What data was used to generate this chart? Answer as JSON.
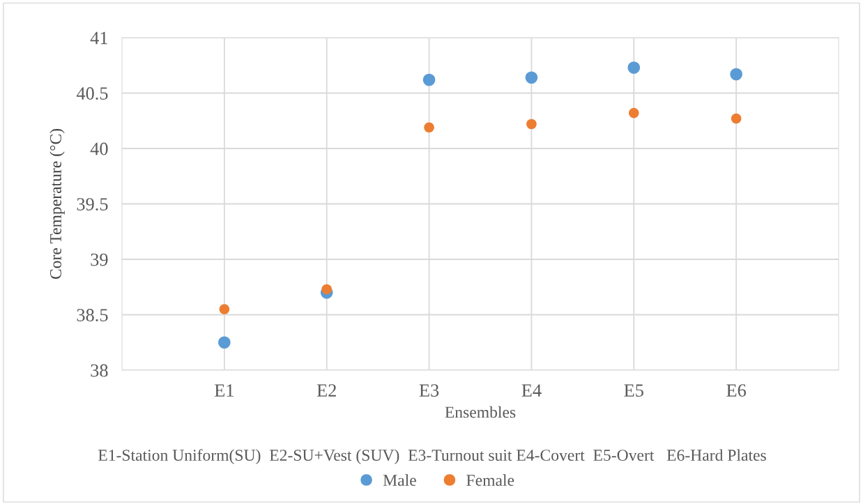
{
  "chart_data": {
    "type": "scatter",
    "xlabel": "Ensembles",
    "ylabel": "Core Temperature (°C)",
    "categories": [
      "E1",
      "E2",
      "E3",
      "E4",
      "E5",
      "E6"
    ],
    "series": [
      {
        "name": "Male",
        "color": "#5b9bd5",
        "values": [
          38.25,
          38.7,
          40.62,
          40.64,
          40.73,
          40.67
        ]
      },
      {
        "name": "Female",
        "color": "#ed7d31",
        "values": [
          38.55,
          38.73,
          40.19,
          40.22,
          40.32,
          40.27
        ]
      }
    ],
    "ylim": [
      38,
      41
    ],
    "yticks": [
      38,
      38.5,
      39,
      39.5,
      40,
      40.5,
      41
    ],
    "annotations": [
      "E1-Station Uniform(SU)  E2-SU+Vest (SUV)  E3-Turnout suit E4-Covert  E5-Overt   E6-Hard Plates"
    ],
    "grid": true,
    "legend": "bottom",
    "marker": "circle"
  }
}
